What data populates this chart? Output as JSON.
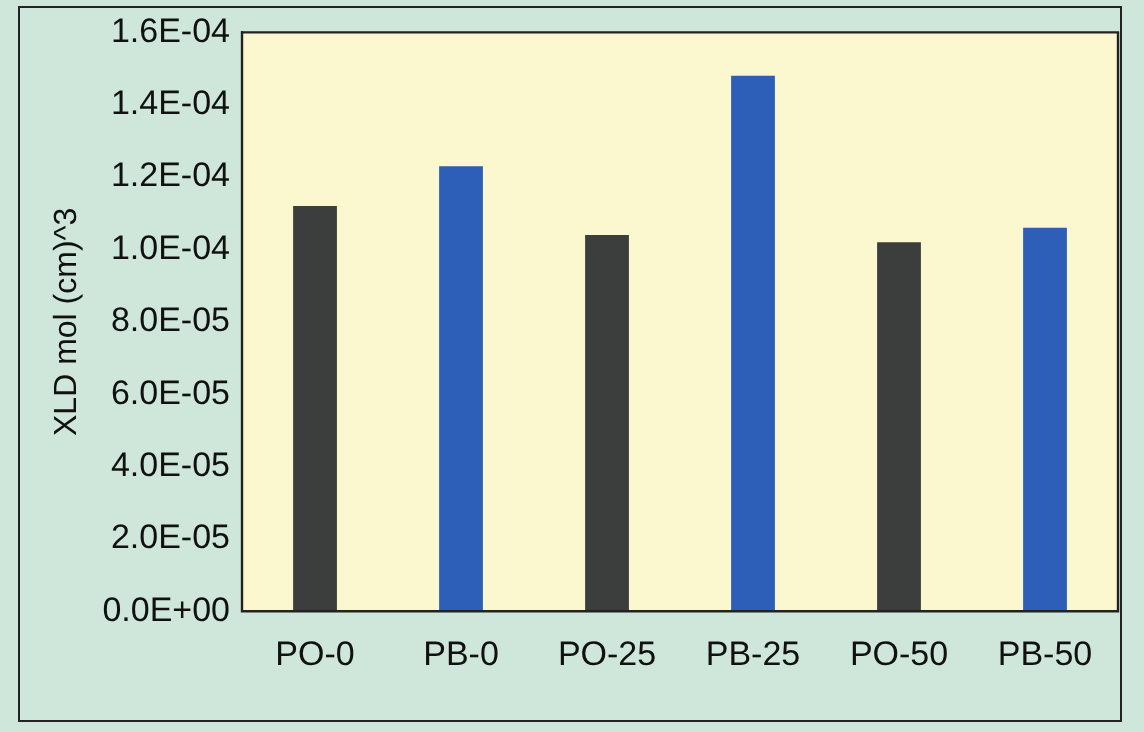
{
  "chart_data": {
    "type": "bar",
    "ylabel": "XLD mol (cm)^3",
    "categories": [
      "PO-0",
      "PB-0",
      "PO-25",
      "PB-25",
      "PO-50",
      "PB-50"
    ],
    "values": [
      0.000112,
      0.000123,
      0.000104,
      0.000148,
      0.000102,
      0.000106
    ],
    "colors": [
      "#3b3e3c",
      "#2d5fb8",
      "#3b3e3c",
      "#2d5fb8",
      "#3b3e3c",
      "#2d5fb8"
    ],
    "ylim": [
      0,
      0.00016
    ],
    "yticks": [
      {
        "value": 0,
        "label": "0.0E+00"
      },
      {
        "value": 2e-05,
        "label": "2.0E-05"
      },
      {
        "value": 4e-05,
        "label": "4.0E-05"
      },
      {
        "value": 6e-05,
        "label": "6.0E-05"
      },
      {
        "value": 8e-05,
        "label": "8.0E-05"
      },
      {
        "value": 0.0001,
        "label": "1.0E-04"
      },
      {
        "value": 0.00012,
        "label": "1.2E-04"
      },
      {
        "value": 0.00014,
        "label": "1.4E-04"
      },
      {
        "value": 0.00016,
        "label": "1.6E-04"
      }
    ],
    "grid": false,
    "legend": false
  }
}
